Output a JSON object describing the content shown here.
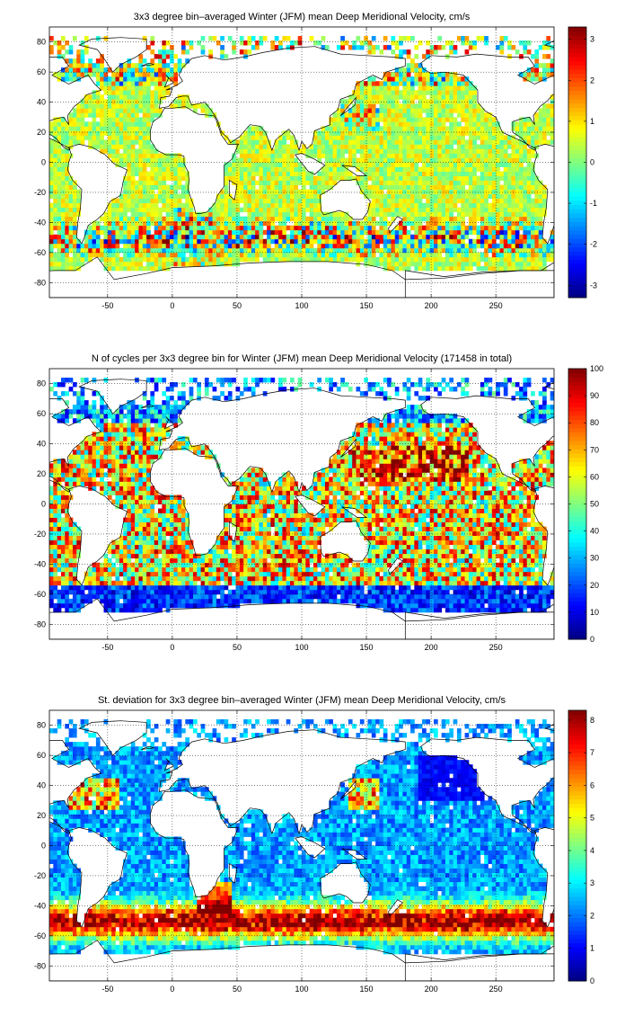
{
  "chart_data": [
    {
      "type": "heatmap",
      "title": "3x3 degree bin–averaged Winter (JFM) mean Deep Meridional Velocity, cm/s",
      "xlabel": "",
      "ylabel": "",
      "xlim": [
        -95,
        295
      ],
      "ylim": [
        -90,
        90
      ],
      "xticks": [
        -50,
        0,
        50,
        100,
        150,
        200,
        250
      ],
      "yticks": [
        -80,
        -60,
        -40,
        -20,
        0,
        20,
        40,
        60,
        80
      ],
      "grid": true,
      "colorbar": {
        "min": -3.3,
        "max": 3.3,
        "ticks": [
          -3,
          -2,
          -1,
          0,
          1,
          2,
          3
        ],
        "colormap": "jet"
      },
      "bin_size_deg": 3,
      "field": "diverging"
    },
    {
      "type": "heatmap",
      "title": "N of cycles per 3x3 degree bin for Winter (JFM) mean Deep Meridional Velocity (171458 in total)",
      "xlabel": "",
      "ylabel": "",
      "xlim": [
        -95,
        295
      ],
      "ylim": [
        -90,
        90
      ],
      "xticks": [
        -50,
        0,
        50,
        100,
        150,
        200,
        250
      ],
      "yticks": [
        -80,
        -60,
        -40,
        -20,
        0,
        20,
        40,
        60,
        80
      ],
      "grid": true,
      "colorbar": {
        "min": 0,
        "max": 100,
        "ticks": [
          0,
          10,
          20,
          30,
          40,
          50,
          60,
          70,
          80,
          90,
          100
        ],
        "colormap": "jet"
      },
      "bin_size_deg": 3,
      "field": "count"
    },
    {
      "type": "heatmap",
      "title": "St. deviation for 3x3 degree bin–averaged Winter (JFM) mean Deep Meridional Velocity, cm/s",
      "xlabel": "",
      "ylabel": "",
      "xlim": [
        -95,
        295
      ],
      "ylim": [
        -90,
        90
      ],
      "xticks": [
        -50,
        0,
        50,
        100,
        150,
        200,
        250
      ],
      "yticks": [
        -80,
        -60,
        -40,
        -20,
        0,
        20,
        40,
        60,
        80
      ],
      "grid": true,
      "colorbar": {
        "min": 0,
        "max": 8.3,
        "ticks": [
          0,
          1,
          2,
          3,
          4,
          5,
          6,
          7,
          8
        ],
        "colormap": "jet"
      },
      "bin_size_deg": 3,
      "field": "stdev"
    }
  ]
}
